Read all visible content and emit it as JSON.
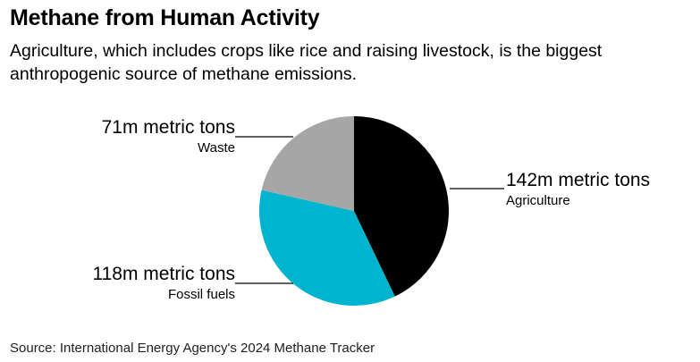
{
  "title": "Methane from Human Activity",
  "subtitle": "Agriculture, which includes crops like rice and raising livestock, is the biggest anthropogenic source of methane emissions.",
  "source": "Source: International Energy Agency's 2024 Methane Tracker",
  "chart_data": {
    "type": "pie",
    "title": "Methane from Human Activity",
    "unit": "m metric tons",
    "slices": [
      {
        "name": "Agriculture",
        "value": 142,
        "value_label": "142m metric tons",
        "color": "#000000"
      },
      {
        "name": "Fossil fuels",
        "value": 118,
        "value_label": "118m metric tons",
        "color": "#00b4d0"
      },
      {
        "name": "Waste",
        "value": 71,
        "value_label": "71m metric tons",
        "color": "#a6a6a6"
      }
    ],
    "start_angle": "12 o'clock",
    "direction": "clockwise",
    "legend": "none",
    "labels": "outside with leader lines"
  }
}
